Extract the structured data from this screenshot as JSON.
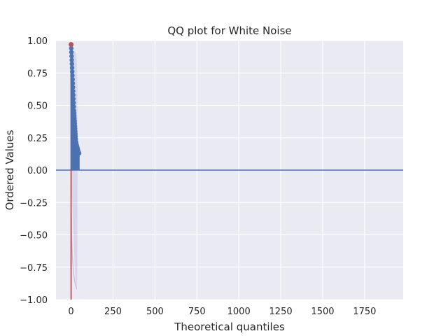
{
  "chart_data": {
    "type": "scatter",
    "title": "QQ plot for White Noise",
    "xlabel": "Theoretical quantiles",
    "ylabel": "Ordered Values",
    "xlim": [
      -90,
      1980
    ],
    "ylim": [
      -1.0,
      1.0
    ],
    "x_ticks": [
      0,
      250,
      500,
      750,
      1000,
      1250,
      1500,
      1750
    ],
    "y_ticks": [
      -1.0,
      -0.75,
      -0.5,
      -0.25,
      0.0,
      0.25,
      0.5,
      0.75,
      1.0
    ],
    "x_tick_labels": [
      "0",
      "250",
      "500",
      "750",
      "1000",
      "1250",
      "1500",
      "1750"
    ],
    "y_tick_labels": [
      "−1.00",
      "−0.75",
      "−0.50",
      "−0.25",
      "0.00",
      "0.25",
      "0.50",
      "0.75",
      "1.00"
    ],
    "grid": true,
    "reference_lines": {
      "horizontal_y": 0.0,
      "vertical_x": 0
    },
    "series": [
      {
        "points": [
          {
            "x": 0,
            "y": 0.97
          },
          {
            "x": 1,
            "y": 0.94
          },
          {
            "x": 2,
            "y": 0.91
          },
          {
            "x": 3,
            "y": 0.88
          },
          {
            "x": 4,
            "y": 0.85
          },
          {
            "x": 5,
            "y": 0.82
          },
          {
            "x": 6,
            "y": 0.79
          },
          {
            "x": 7,
            "y": 0.76
          },
          {
            "x": 8,
            "y": 0.73
          },
          {
            "x": 9,
            "y": 0.7
          },
          {
            "x": 10,
            "y": 0.67
          },
          {
            "x": 11,
            "y": 0.64
          },
          {
            "x": 12,
            "y": 0.61
          },
          {
            "x": 13,
            "y": 0.58
          },
          {
            "x": 14,
            "y": 0.55
          },
          {
            "x": 15,
            "y": 0.52
          },
          {
            "x": 16,
            "y": 0.49
          },
          {
            "x": 17,
            "y": 0.46
          },
          {
            "x": 18,
            "y": 0.44
          },
          {
            "x": 19,
            "y": 0.42
          },
          {
            "x": 20,
            "y": 0.4
          },
          {
            "x": 21,
            "y": 0.38
          },
          {
            "x": 22,
            "y": 0.36
          },
          {
            "x": 23,
            "y": 0.34
          },
          {
            "x": 24,
            "y": 0.32
          },
          {
            "x": 25,
            "y": 0.3
          },
          {
            "x": 26,
            "y": 0.28
          },
          {
            "x": 27,
            "y": 0.26
          },
          {
            "x": 28,
            "y": 0.24
          },
          {
            "x": 29,
            "y": 0.22
          },
          {
            "x": 30,
            "y": 0.21
          },
          {
            "x": 32,
            "y": 0.2
          },
          {
            "x": 34,
            "y": 0.19
          },
          {
            "x": 36,
            "y": 0.18
          },
          {
            "x": 38,
            "y": 0.17
          },
          {
            "x": 40,
            "y": 0.16
          },
          {
            "x": 42,
            "y": 0.15
          },
          {
            "x": 44,
            "y": 0.14
          },
          {
            "x": 46,
            "y": 0.13
          },
          {
            "x": 48,
            "y": 0.13
          }
        ]
      }
    ],
    "colors": {
      "background": "#eaeaf2",
      "grid": "#ffffff",
      "points": "#4c72b0",
      "horizontal_line": "#4c72b0",
      "vertical_line": "#c44e52",
      "band": "#8c9bd0"
    }
  }
}
